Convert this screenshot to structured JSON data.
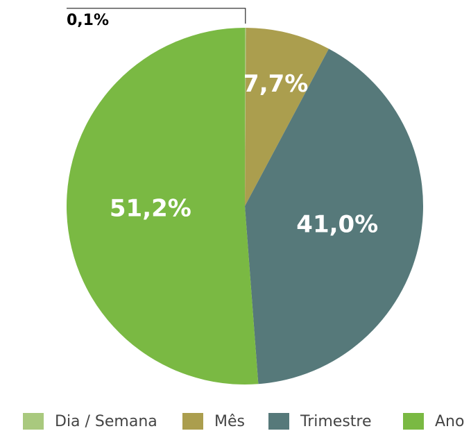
{
  "chart_data": {
    "type": "pie",
    "categories": [
      "Dia / Semana",
      "Mês",
      "Trimestre",
      "Ano"
    ],
    "values": [
      0.1,
      7.7,
      41.0,
      51.2
    ],
    "value_labels": [
      "0,1%",
      "7,7%",
      "41,0%",
      "51,2%"
    ],
    "colors": [
      "#a9c97e",
      "#ab9e4e",
      "#56797a",
      "#7ab943"
    ],
    "legend": "bottom"
  }
}
